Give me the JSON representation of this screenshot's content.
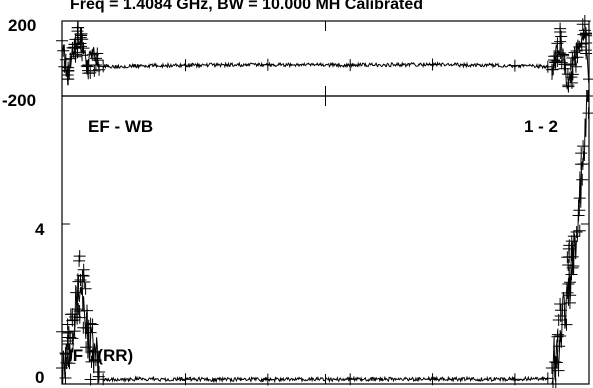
{
  "chart_data": {
    "type": "scatter",
    "title": "Freq = 1.4084 GHz, BW = 10.000 MH  Calibrated",
    "colors": {
      "marks": "#000000",
      "background": "#ffffff",
      "frame": "#000000"
    },
    "x": {
      "range": [
        0,
        256
      ],
      "ticks": [],
      "tick_labels": []
    },
    "panels": [
      {
        "id": "phase",
        "quantity": "phase",
        "unit": "deg",
        "ylim": [
          -200,
          200
        ],
        "tick_labels": [
          "200",
          "-200"
        ],
        "tick_values": [
          200,
          -200
        ],
        "series": [
          {
            "marker": "plus",
            "line": true,
            "segments": [
              {
                "x": [
                  0,
                  3,
                  6,
                  9,
                  12,
                  15,
                  18
                ],
                "y": [
                  95,
                  -110,
                  60,
                  130,
                  -40,
                  20,
                  -60
                ]
              },
              {
                "x": [
                  20,
                  60,
                  100,
                  140,
                  180,
                  220,
                  236
                ],
                "y": [
                  -42,
                  -36,
                  -33,
                  -35,
                  -32,
                  -38,
                  -44
                ]
              },
              {
                "x": [
                  238,
                  242,
                  246,
                  250,
                  254,
                  256
                ],
                "y": [
                  -60,
                  90,
                  -150,
                  40,
                  150,
                  -110
                ]
              }
            ],
            "typical_values": {
              "edge_scatter_range": [
                -180,
                180
              ],
              "center_level": -35,
              "center_noise": 12
            }
          }
        ]
      },
      {
        "id": "amplitude",
        "quantity": "amplitude",
        "unit": "",
        "ylim": [
          0,
          7.2
        ],
        "tick_labels": [
          "4",
          "0"
        ],
        "tick_values": [
          4,
          0
        ],
        "series": [
          {
            "marker": "plus",
            "line": true,
            "segments": [
              {
                "x": [
                  0,
                  3,
                  6,
                  9,
                  12,
                  15,
                  18
                ],
                "y": [
                  0.4,
                  1.0,
                  1.6,
                  2.6,
                  1.4,
                  0.8,
                  0.3
                ]
              },
              {
                "x": [
                  20,
                  60,
                  100,
                  140,
                  180,
                  220,
                  236
                ],
                "y": [
                  0.12,
                  0.12,
                  0.11,
                  0.12,
                  0.12,
                  0.12,
                  0.14
                ]
              },
              {
                "x": [
                  238,
                  242,
                  246,
                  250,
                  253,
                  256
                ],
                "y": [
                  0.4,
                  1.2,
                  2.5,
                  3.8,
                  5.5,
                  7.2
                ]
              }
            ],
            "typical_values": {
              "baseline": 0.12,
              "left_peak": 2.9,
              "right_peak": 7.2
            }
          }
        ]
      }
    ],
    "annotations": {
      "baseline": "EF - WB",
      "polarization_pair": "1 - 2",
      "if_label": "IF 1(RR)"
    }
  }
}
